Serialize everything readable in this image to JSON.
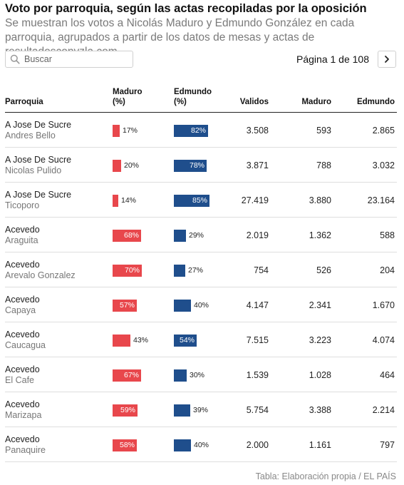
{
  "header": {
    "title": "Voto por parroquia, según las actas recopiladas por la oposición",
    "subtitle": "Se muestran los votos a Nicolás Maduro y Edmundo González en cada parroquia, agrupados a partir de los datos de mesas y actas de resultadosconvzla.com"
  },
  "search": {
    "placeholder": "Buscar",
    "value": "",
    "icon": "search-icon"
  },
  "pagination": {
    "label": "Página 1 de 108",
    "current_page": 1,
    "total_pages": 108,
    "next_icon": "chevron-right-icon"
  },
  "colors": {
    "maduro": "#e8474c",
    "edmundo": "#1f4e8c",
    "text": "#111111",
    "muted": "#777777"
  },
  "footer": {
    "source": "Tabla: Elaboración propia / EL PAÍS"
  },
  "chart_data": {
    "type": "table",
    "columns": {
      "parroquia": "Parroquia",
      "maduro_pct_line1": "Maduro",
      "maduro_pct_line2": "(%)",
      "edmundo_pct_line1": "Edmundo",
      "edmundo_pct_line2": "(%)",
      "validos": "Validos",
      "maduro": "Maduro",
      "edmundo": "Edmundo"
    },
    "rows": [
      {
        "place": "A Jose De Sucre",
        "sub": "Andres Bello",
        "maduro_pct": 17,
        "edmundo_pct": 82,
        "maduro_pct_label": "17%",
        "edmundo_pct_label": "82%",
        "validos": "3.508",
        "maduro": "593",
        "edmundo": "2.865"
      },
      {
        "place": "A Jose De Sucre",
        "sub": "Nicolas Pulido",
        "maduro_pct": 20,
        "edmundo_pct": 78,
        "maduro_pct_label": "20%",
        "edmundo_pct_label": "78%",
        "validos": "3.871",
        "maduro": "788",
        "edmundo": "3.032"
      },
      {
        "place": "A Jose De Sucre",
        "sub": "Ticoporo",
        "maduro_pct": 14,
        "edmundo_pct": 85,
        "maduro_pct_label": "14%",
        "edmundo_pct_label": "85%",
        "validos": "27.419",
        "maduro": "3.880",
        "edmundo": "23.164"
      },
      {
        "place": "Acevedo",
        "sub": "Araguita",
        "maduro_pct": 68,
        "edmundo_pct": 29,
        "maduro_pct_label": "68%",
        "edmundo_pct_label": "29%",
        "validos": "2.019",
        "maduro": "1.362",
        "edmundo": "588"
      },
      {
        "place": "Acevedo",
        "sub": "Arevalo Gonzalez",
        "maduro_pct": 70,
        "edmundo_pct": 27,
        "maduro_pct_label": "70%",
        "edmundo_pct_label": "27%",
        "validos": "754",
        "maduro": "526",
        "edmundo": "204"
      },
      {
        "place": "Acevedo",
        "sub": "Capaya",
        "maduro_pct": 57,
        "edmundo_pct": 40,
        "maduro_pct_label": "57%",
        "edmundo_pct_label": "40%",
        "validos": "4.147",
        "maduro": "2.341",
        "edmundo": "1.670"
      },
      {
        "place": "Acevedo",
        "sub": "Caucagua",
        "maduro_pct": 43,
        "edmundo_pct": 54,
        "maduro_pct_label": "43%",
        "edmundo_pct_label": "54%",
        "validos": "7.515",
        "maduro": "3.223",
        "edmundo": "4.074"
      },
      {
        "place": "Acevedo",
        "sub": "El Cafe",
        "maduro_pct": 67,
        "edmundo_pct": 30,
        "maduro_pct_label": "67%",
        "edmundo_pct_label": "30%",
        "validos": "1.539",
        "maduro": "1.028",
        "edmundo": "464"
      },
      {
        "place": "Acevedo",
        "sub": "Marizapa",
        "maduro_pct": 59,
        "edmundo_pct": 39,
        "maduro_pct_label": "59%",
        "edmundo_pct_label": "39%",
        "validos": "5.754",
        "maduro": "3.388",
        "edmundo": "2.214"
      },
      {
        "place": "Acevedo",
        "sub": "Panaquire",
        "maduro_pct": 58,
        "edmundo_pct": 40,
        "maduro_pct_label": "58%",
        "edmundo_pct_label": "40%",
        "validos": "2.000",
        "maduro": "1.161",
        "edmundo": "797"
      }
    ]
  }
}
